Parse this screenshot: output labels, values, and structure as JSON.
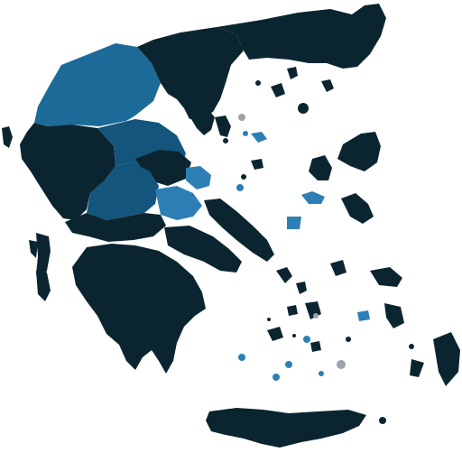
{
  "colors": {
    "dark": "#0b2530",
    "blue": "#1c6a98",
    "blue2": "#14557d",
    "blue3": "#2d7fb5",
    "grey": "#9aa4aa",
    "mid": "#24506b"
  },
  "regions": [
    {
      "id": "epirus-macedonia-west",
      "fill": "blue"
    },
    {
      "id": "central-macedonia",
      "fill": "dark"
    },
    {
      "id": "thrace",
      "fill": "dark"
    },
    {
      "id": "western-greece",
      "fill": "dark"
    },
    {
      "id": "thessaly",
      "fill": "blue2"
    },
    {
      "id": "central-greece",
      "fill": "blue2"
    },
    {
      "id": "attica-euboea",
      "fill": "dark"
    },
    {
      "id": "peloponnese",
      "fill": "dark"
    },
    {
      "id": "crete",
      "fill": "dark"
    },
    {
      "id": "aegean-islands",
      "fill": "dark"
    }
  ],
  "legend": {
    "rows": [
      "",
      "",
      "",
      ""
    ]
  },
  "small_label": ""
}
